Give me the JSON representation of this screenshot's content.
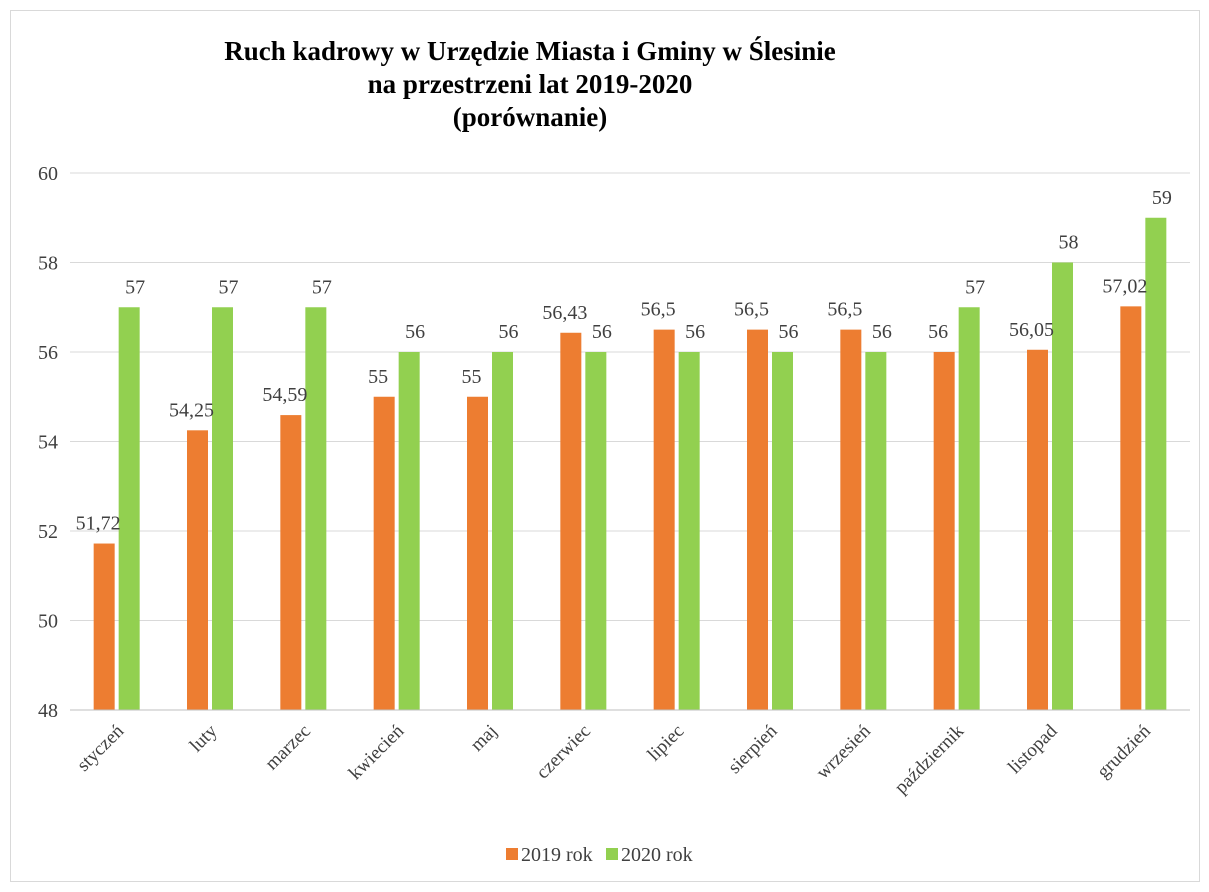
{
  "chart_data": {
    "type": "bar",
    "title_lines": [
      "Ruch kadrowy w Urzędzie Miasta i Gminy w Ślesinie",
      "na przestrzeni lat 2019-2020",
      "(porównanie)"
    ],
    "categories": [
      "styczeń",
      "luty",
      "marzec",
      "kwiecień",
      "maj",
      "czerwiec",
      "lipiec",
      "sierpień",
      "wrzesień",
      "październik",
      "listopad",
      "grudzień"
    ],
    "series": [
      {
        "name": "2019 rok",
        "color": "#ED7D31",
        "values": [
          51.72,
          54.25,
          54.59,
          55,
          55,
          56.43,
          56.5,
          56.5,
          56.5,
          56,
          56.05,
          57.02
        ],
        "labels": [
          "51,72",
          "54,25",
          "54,59",
          "55",
          "55",
          "56,43",
          "56,5",
          "56,5",
          "56,5",
          "56",
          "56,05",
          "57,02"
        ]
      },
      {
        "name": "2020 rok",
        "color": "#92D050",
        "values": [
          57,
          57,
          57,
          56,
          56,
          56,
          56,
          56,
          56,
          57,
          58,
          59
        ],
        "labels": [
          "57",
          "57",
          "57",
          "56",
          "56",
          "56",
          "56",
          "56",
          "56",
          "57",
          "58",
          "59"
        ]
      }
    ],
    "ylim": [
      48,
      60
    ],
    "yticks": [
      48,
      50,
      52,
      54,
      56,
      58,
      60
    ],
    "grid": true,
    "legend_position": "bottom",
    "xlabel": "",
    "ylabel": ""
  }
}
